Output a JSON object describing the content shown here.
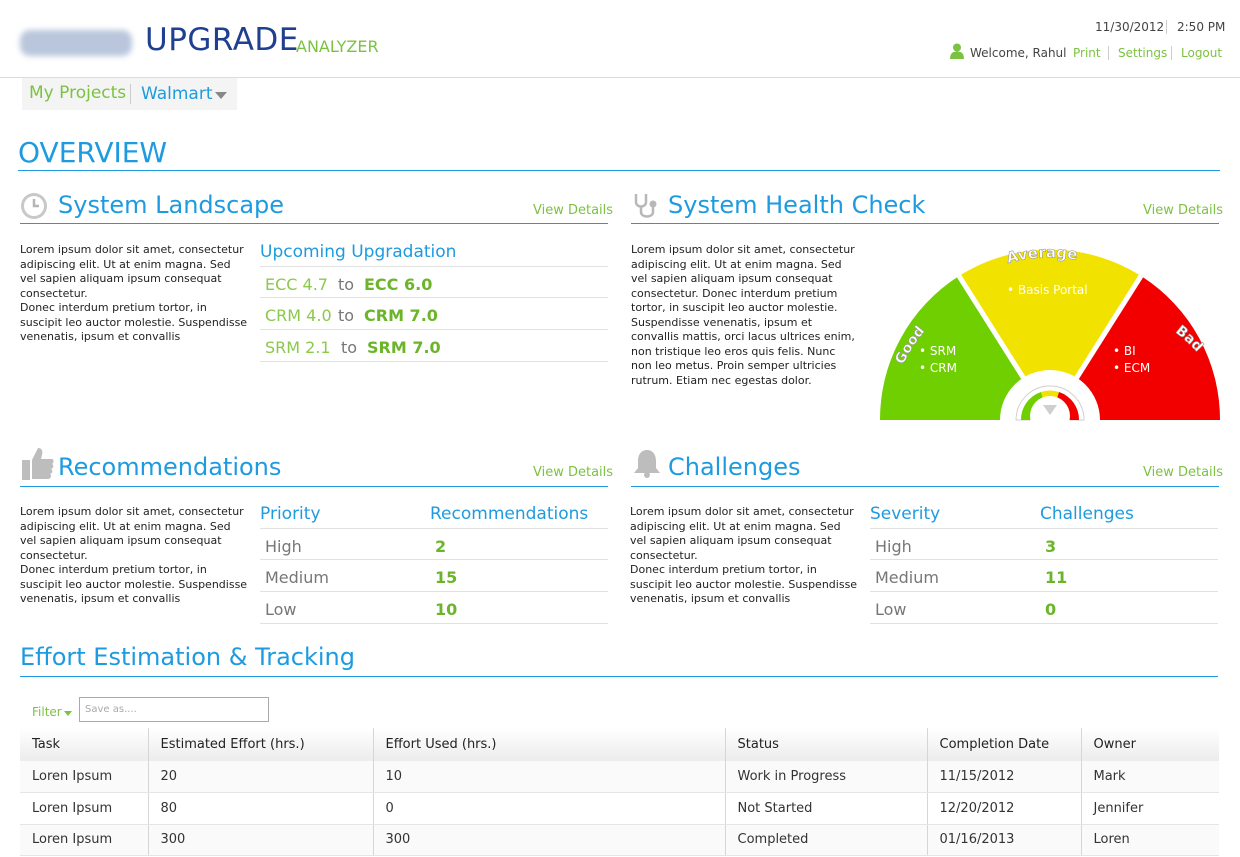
{
  "header": {
    "brand_main": "UPGRADE",
    "brand_sub": "ANALYZER",
    "date": "11/30/2012",
    "time": "2:50 PM",
    "welcome": "Welcome, Rahul",
    "links": {
      "print": "Print",
      "settings": "Settings",
      "logout": "Logout"
    }
  },
  "projnav": {
    "my_projects": "My Projects",
    "current_project": "Walmart"
  },
  "overview": {
    "title": "OVERVIEW"
  },
  "landscape": {
    "title": "System Landscape",
    "view_details": "View Details",
    "text": "Lorem ipsum dolor sit amet, consectetur adipiscing elit. Ut at enim magna. Sed vel sapien aliquam ipsum consequat consectetur.\nDonec interdum pretium tortor, in suscipit leo auctor molestie. Suspendisse venenatis, ipsum et convallis",
    "upcoming_title": "Upcoming Upgradation",
    "upgrades": [
      {
        "from": "ECC 4.7",
        "to_word": "to",
        "to": "ECC 6.0"
      },
      {
        "from": "CRM 4.0",
        "to_word": "to",
        "to": "CRM 7.0"
      },
      {
        "from": "SRM 2.1",
        "to_word": "to",
        "to": "SRM 7.0"
      }
    ]
  },
  "health": {
    "title": "System Health Check",
    "view_details": "View Details",
    "text": "Lorem ipsum dolor sit amet, consectetur adipiscing elit. Ut at enim magna. Sed vel sapien aliquam ipsum consequat consectetur. Donec interdum pretium tortor, in suscipit leo auctor molestie. Suspendisse venenatis, ipsum et convallis mattis, orci lacus ultrices enim, non tristique leo eros quis felis. Nunc non leo metus. Proin semper ultricies rutrum. Etiam nec egestas dolor.",
    "gauge": {
      "good_label": "Good",
      "average_label": "Average",
      "bad_label": "Bad",
      "good_items": [
        "• SRM",
        "• CRM"
      ],
      "average_items": [
        "• Basis Portal"
      ],
      "bad_items": [
        "• BI",
        "• ECM"
      ],
      "colors": {
        "good": "#6fcf00",
        "average": "#f2e200",
        "bad": "#f20000"
      }
    }
  },
  "recommendations": {
    "title": "Recommendations",
    "view_details": "View Details",
    "text": "Lorem ipsum dolor sit amet, consectetur adipiscing elit. Ut at enim magna. Sed vel sapien aliquam ipsum consequat consectetur.\nDonec interdum pretium tortor, in suscipit leo auctor molestie. Suspendisse venenatis, ipsum et convallis",
    "col1": "Priority",
    "col2": "Recommendations",
    "rows": [
      {
        "label": "High",
        "value": "2"
      },
      {
        "label": "Medium",
        "value": "15"
      },
      {
        "label": "Low",
        "value": "10"
      }
    ]
  },
  "challenges": {
    "title": "Challenges",
    "view_details": "View Details",
    "text": "Lorem ipsum dolor sit amet, consectetur adipiscing elit. Ut at enim magna. Sed vel sapien aliquam ipsum consequat consectetur.\nDonec interdum pretium tortor, in suscipit leo auctor molestie. Suspendisse venenatis, ipsum et convallis",
    "col1": "Severity",
    "col2": "Challenges",
    "rows": [
      {
        "label": "High",
        "value": "3"
      },
      {
        "label": "Medium",
        "value": "11"
      },
      {
        "label": "Low",
        "value": "0"
      }
    ]
  },
  "effort": {
    "title": "Effort Estimation & Tracking",
    "filter_label": "Filter",
    "save_placeholder": "Save as....",
    "columns": [
      "Task",
      "Estimated Effort (hrs.)",
      "Effort Used (hrs.)",
      "Status",
      "Completion Date",
      "Owner"
    ],
    "rows": [
      [
        "Loren Ipsum",
        "20",
        "10",
        "Work in Progress",
        "11/15/2012",
        "Mark"
      ],
      [
        "Loren Ipsum",
        "80",
        "0",
        "Not Started",
        "12/20/2012",
        "Jennifer"
      ],
      [
        "Loren Ipsum",
        "300",
        "300",
        "Completed",
        "01/16/2013",
        "Loren"
      ]
    ]
  }
}
